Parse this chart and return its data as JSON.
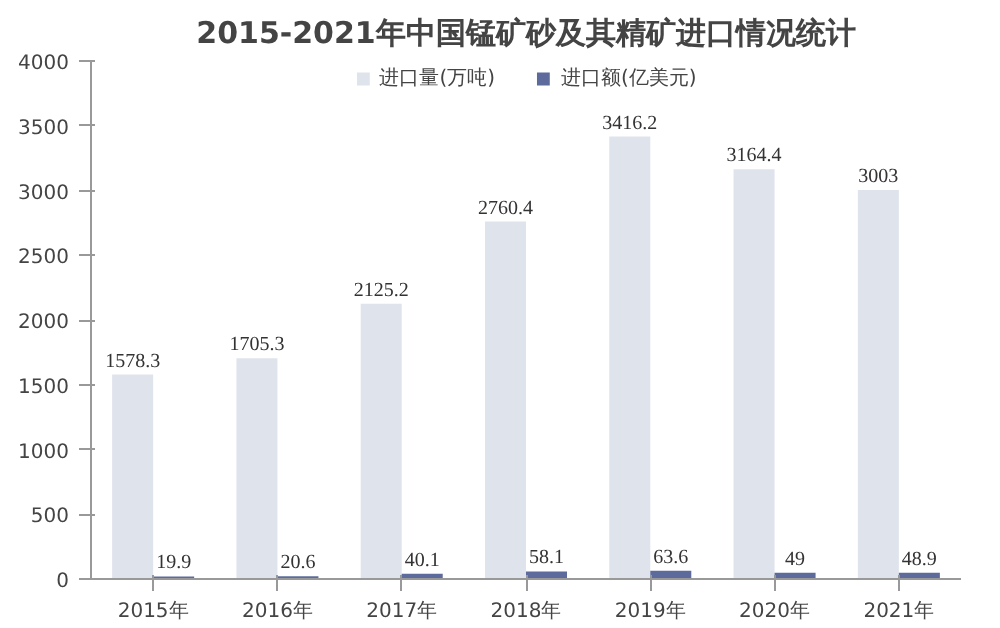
{
  "chart_data": {
    "type": "bar",
    "title": "2015-2021年中国锰矿砂及其精矿进口情况统计",
    "categories": [
      "2015年",
      "2016年",
      "2017年",
      "2018年",
      "2019年",
      "2020年",
      "2021年"
    ],
    "series": [
      {
        "name": "进口量(万吨)",
        "color": "#dfe3ec",
        "values": [
          1578.3,
          1705.3,
          2125.2,
          2760.4,
          3416.2,
          3164.4,
          3003
        ]
      },
      {
        "name": "进口额(亿美元)",
        "color": "#5d6b9c",
        "values": [
          19.9,
          20.6,
          40.1,
          58.1,
          63.6,
          49,
          48.9
        ]
      }
    ],
    "ylim": [
      0,
      4000
    ],
    "yticks": [
      0,
      500,
      1000,
      1500,
      2000,
      2500,
      3000,
      3500,
      4000
    ],
    "grid": false,
    "legend": "top",
    "data_labels": true
  }
}
